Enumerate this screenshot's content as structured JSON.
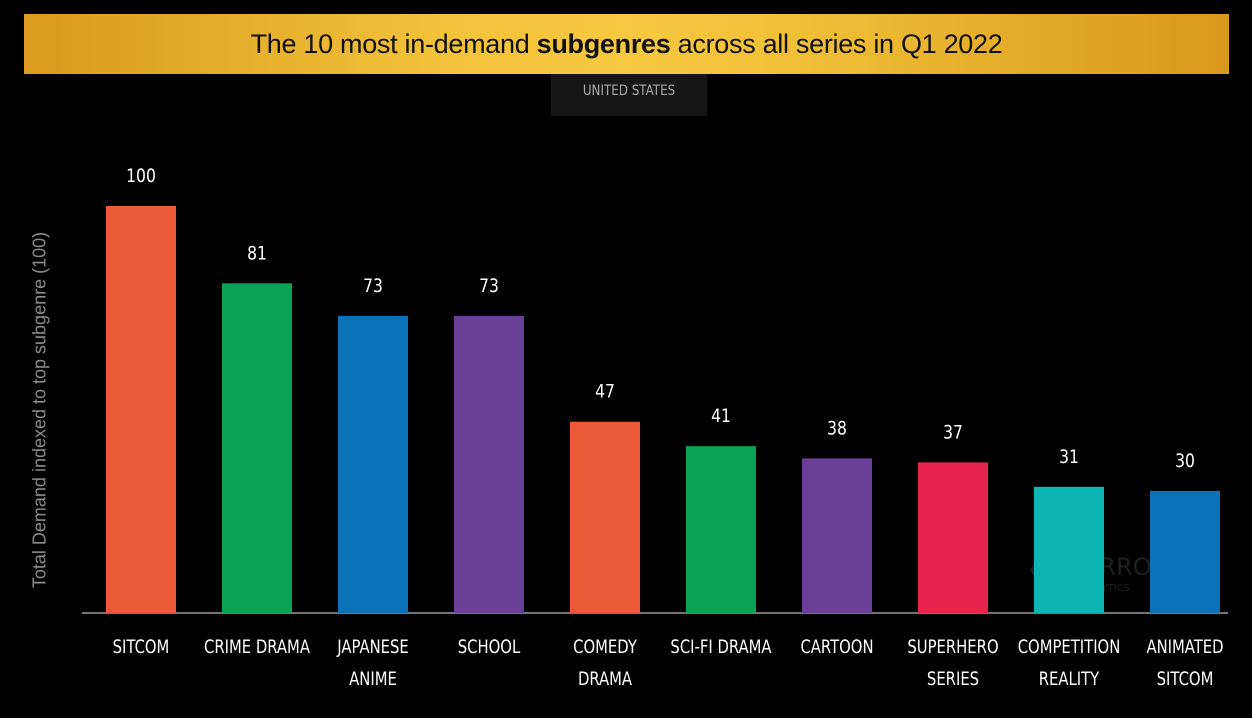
{
  "header": {
    "title_prefix": "The 10 most in-demand ",
    "title_bold": "subgenres",
    "title_suffix": " across all series in Q1 2022",
    "region": "UNITED STATES"
  },
  "chart_data": {
    "type": "bar",
    "title": "The 10 most in-demand subgenres across all series in Q1 2022",
    "subtitle": "UNITED STATES",
    "ylabel": "Total Demand indexed to top subgenre (100)",
    "ylim": [
      0,
      100
    ],
    "grid": false,
    "categories": [
      [
        "SITCOM"
      ],
      [
        "CRIME DRAMA"
      ],
      [
        "JAPANESE",
        "ANIME"
      ],
      [
        "SCHOOL"
      ],
      [
        "COMEDY",
        "DRAMA"
      ],
      [
        "SCI-FI DRAMA"
      ],
      [
        "CARTOON"
      ],
      [
        "SUPERHERO",
        "SERIES"
      ],
      [
        "COMPETITION",
        "REALITY"
      ],
      [
        "ANIMATED",
        "SITCOM"
      ]
    ],
    "values": [
      100,
      81,
      73,
      73,
      47,
      41,
      38,
      37,
      31,
      30
    ],
    "colors": [
      "#ec5a3a",
      "#0aa354",
      "#0a72b8",
      "#6a3f98",
      "#ec5a3a",
      "#0aa354",
      "#6a3f98",
      "#e8244c",
      "#0db5b4",
      "#0a72b8"
    ]
  },
  "watermark": {
    "text": "PARROT",
    "subtext": "ANALYTICS"
  }
}
